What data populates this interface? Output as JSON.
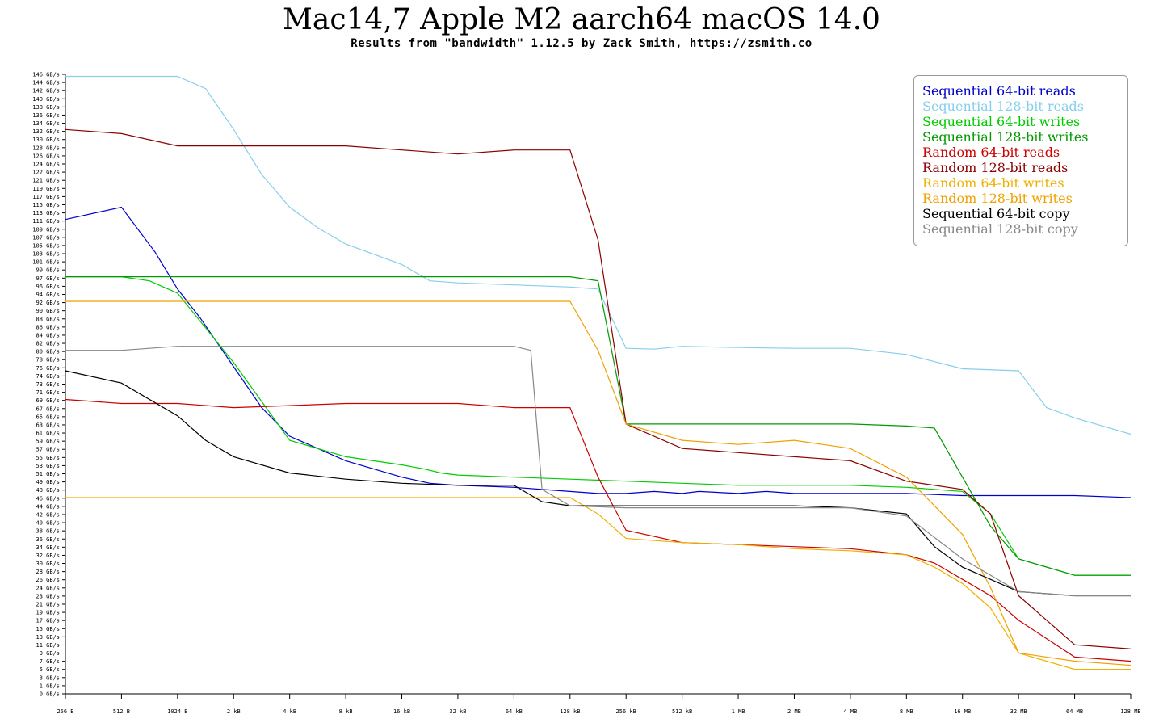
{
  "title": "Mac14,7 Apple M2 aarch64 macOS 14.0",
  "subtitle": "Results from \"bandwidth\" 1.12.5 by Zack Smith, https://zsmith.co",
  "chart_data": {
    "type": "line",
    "x_scale": "log2",
    "x_tick_labels": [
      "256 B",
      "512 B",
      "1024 B",
      "2 kB",
      "4 kB",
      "8 kB",
      "16 kB",
      "32 kB",
      "64 kB",
      "128 kB",
      "256 kB",
      "512 kB",
      "1 MB",
      "2 MB",
      "4 MB",
      "8 MB",
      "16 MB",
      "32 MB",
      "64 MB",
      "128 MB"
    ],
    "x_range_bytes": [
      256,
      134217728
    ],
    "y_tick_labels": [
      "0 GB/s",
      "1 GB/s",
      "3 GB/s",
      "5 GB/s",
      "7 GB/s",
      "9 GB/s",
      "11 GB/s",
      "13 GB/s",
      "15 GB/s",
      "17 GB/s",
      "19 GB/s",
      "21 GB/s",
      "23 GB/s",
      "24 GB/s",
      "26 GB/s",
      "28 GB/s",
      "30 GB/s",
      "32 GB/s",
      "34 GB/s",
      "36 GB/s",
      "38 GB/s",
      "40 GB/s",
      "42 GB/s",
      "44 GB/s",
      "46 GB/s",
      "48 GB/s",
      "49 GB/s",
      "51 GB/s",
      "53 GB/s",
      "55 GB/s",
      "57 GB/s",
      "59 GB/s",
      "61 GB/s",
      "63 GB/s",
      "65 GB/s",
      "67 GB/s",
      "69 GB/s",
      "71 GB/s",
      "73 GB/s",
      "74 GB/s",
      "76 GB/s",
      "78 GB/s",
      "80 GB/s",
      "82 GB/s",
      "84 GB/s",
      "86 GB/s",
      "88 GB/s",
      "90 GB/s",
      "92 GB/s",
      "94 GB/s",
      "96 GB/s",
      "97 GB/s",
      "99 GB/s",
      "101 GB/s",
      "103 GB/s",
      "105 GB/s",
      "107 GB/s",
      "109 GB/s",
      "111 GB/s",
      "113 GB/s",
      "115 GB/s",
      "117 GB/s",
      "119 GB/s",
      "121 GB/s",
      "122 GB/s",
      "124 GB/s",
      "126 GB/s",
      "128 GB/s",
      "130 GB/s",
      "132 GB/s",
      "134 GB/s",
      "136 GB/s",
      "138 GB/s",
      "140 GB/s",
      "142 GB/s",
      "144 GB/s",
      "146 GB/s"
    ],
    "ylim": [
      0,
      151.5
    ],
    "ylabel_unit": "GB/s",
    "grid": false,
    "legend_position": "top-right",
    "series": [
      {
        "name": "Sequential 64-bit reads",
        "color": "#0000cc",
        "points": [
          [
            0,
            116
          ],
          [
            1,
            119
          ],
          [
            1.6,
            108
          ],
          [
            2,
            99
          ],
          [
            2.4,
            92
          ],
          [
            3,
            80
          ],
          [
            3.5,
            70
          ],
          [
            4,
            63
          ],
          [
            5,
            57
          ],
          [
            6,
            53
          ],
          [
            6.5,
            51.5
          ],
          [
            7,
            51
          ],
          [
            8,
            50.5
          ],
          [
            8.5,
            50
          ],
          [
            9,
            49.5
          ],
          [
            9.5,
            49
          ],
          [
            10,
            49
          ],
          [
            10.5,
            49.5
          ],
          [
            11,
            49
          ],
          [
            11.3,
            49.5
          ],
          [
            12,
            49
          ],
          [
            12.5,
            49.5
          ],
          [
            13,
            49
          ],
          [
            14,
            49
          ],
          [
            15,
            49
          ],
          [
            16,
            48.5
          ],
          [
            17,
            48.5
          ],
          [
            18,
            48.5
          ],
          [
            19,
            48
          ]
        ]
      },
      {
        "name": "Sequential 128-bit reads",
        "color": "#87ceeb",
        "points": [
          [
            0,
            151
          ],
          [
            1,
            151
          ],
          [
            2,
            151
          ],
          [
            2.5,
            148
          ],
          [
            3,
            138
          ],
          [
            3.5,
            127
          ],
          [
            4,
            119
          ],
          [
            4.5,
            114
          ],
          [
            5,
            110
          ],
          [
            6,
            105
          ],
          [
            6.5,
            101
          ],
          [
            7,
            100.5
          ],
          [
            8,
            100
          ],
          [
            9,
            99.5
          ],
          [
            9.5,
            99
          ],
          [
            10,
            84.5
          ],
          [
            10.5,
            84.3
          ],
          [
            11,
            85
          ],
          [
            12,
            84.7
          ],
          [
            13,
            84.5
          ],
          [
            14,
            84.5
          ],
          [
            15,
            83
          ],
          [
            16,
            79.5
          ],
          [
            17,
            79
          ],
          [
            17.5,
            70
          ],
          [
            18,
            67.5
          ],
          [
            19,
            63.5
          ]
        ]
      },
      {
        "name": "Sequential 64-bit writes",
        "color": "#00cc00",
        "points": [
          [
            0,
            102
          ],
          [
            1,
            102
          ],
          [
            1.5,
            101
          ],
          [
            2,
            98
          ],
          [
            3,
            81
          ],
          [
            4,
            62
          ],
          [
            5,
            58
          ],
          [
            6,
            56
          ],
          [
            6.4,
            55
          ],
          [
            6.7,
            54
          ],
          [
            7,
            53.5
          ],
          [
            8,
            53
          ],
          [
            9,
            52.5
          ],
          [
            10,
            52
          ],
          [
            11,
            51.5
          ],
          [
            12,
            51
          ],
          [
            13,
            51
          ],
          [
            14,
            51
          ],
          [
            15,
            50.5
          ],
          [
            16,
            49.5
          ],
          [
            16.5,
            44
          ],
          [
            17,
            33
          ],
          [
            18,
            29
          ],
          [
            19,
            29
          ]
        ]
      },
      {
        "name": "Sequential 128-bit writes",
        "color": "#009900",
        "points": [
          [
            0,
            102
          ],
          [
            1,
            102
          ],
          [
            2,
            102
          ],
          [
            3,
            102
          ],
          [
            5,
            102
          ],
          [
            7,
            102
          ],
          [
            8,
            102
          ],
          [
            9,
            102
          ],
          [
            9.5,
            101
          ],
          [
            10,
            66
          ],
          [
            11,
            66
          ],
          [
            12,
            66
          ],
          [
            13,
            66
          ],
          [
            14,
            66
          ],
          [
            15,
            65.5
          ],
          [
            15.5,
            65
          ],
          [
            16,
            53
          ],
          [
            16.5,
            41
          ],
          [
            17,
            33
          ],
          [
            18,
            29
          ],
          [
            19,
            29
          ]
        ]
      },
      {
        "name": "Random 64-bit reads",
        "color": "#cc0000",
        "points": [
          [
            0,
            72
          ],
          [
            1,
            71
          ],
          [
            2,
            71
          ],
          [
            3,
            70
          ],
          [
            4,
            70.5
          ],
          [
            5,
            71
          ],
          [
            6,
            71
          ],
          [
            7,
            71
          ],
          [
            8,
            70
          ],
          [
            9,
            70
          ],
          [
            9.5,
            53
          ],
          [
            10,
            40
          ],
          [
            11,
            37
          ],
          [
            12,
            36.5
          ],
          [
            13,
            36
          ],
          [
            14,
            35.5
          ],
          [
            15,
            34
          ],
          [
            15.5,
            32
          ],
          [
            16,
            28
          ],
          [
            16.5,
            24
          ],
          [
            17,
            18
          ],
          [
            18,
            9
          ],
          [
            19,
            8
          ]
        ]
      },
      {
        "name": "Random 128-bit reads",
        "color": "#8b0000",
        "points": [
          [
            0,
            138
          ],
          [
            1,
            137
          ],
          [
            2,
            134
          ],
          [
            3,
            134
          ],
          [
            4,
            134
          ],
          [
            5,
            134
          ],
          [
            6,
            133
          ],
          [
            7,
            132
          ],
          [
            8,
            133
          ],
          [
            9,
            133
          ],
          [
            9.5,
            111
          ],
          [
            10,
            66
          ],
          [
            11,
            60
          ],
          [
            12,
            59
          ],
          [
            13,
            58
          ],
          [
            14,
            57
          ],
          [
            15,
            52
          ],
          [
            16,
            50
          ],
          [
            16.5,
            44
          ],
          [
            17,
            24
          ],
          [
            18,
            12
          ],
          [
            19,
            11
          ]
        ]
      },
      {
        "name": "Random 64-bit writes",
        "color": "#f0b000",
        "points": [
          [
            0,
            48
          ],
          [
            1,
            48
          ],
          [
            2,
            48
          ],
          [
            3,
            48
          ],
          [
            4,
            48
          ],
          [
            5,
            48
          ],
          [
            6,
            48
          ],
          [
            7,
            48
          ],
          [
            8,
            48
          ],
          [
            9,
            48
          ],
          [
            9.5,
            44
          ],
          [
            10,
            38
          ],
          [
            11,
            37
          ],
          [
            12,
            36.5
          ],
          [
            13,
            35.5
          ],
          [
            14,
            35
          ],
          [
            15,
            34
          ],
          [
            15.5,
            31
          ],
          [
            16,
            27
          ],
          [
            16.5,
            21
          ],
          [
            17,
            10
          ],
          [
            18,
            6
          ],
          [
            19,
            6
          ]
        ]
      },
      {
        "name": "Random 128-bit writes",
        "color": "#f0a000",
        "points": [
          [
            0,
            96
          ],
          [
            1,
            96
          ],
          [
            2,
            96
          ],
          [
            3,
            96
          ],
          [
            4,
            96
          ],
          [
            5,
            96
          ],
          [
            6,
            96
          ],
          [
            7,
            96
          ],
          [
            8,
            96
          ],
          [
            9,
            96
          ],
          [
            9.5,
            84
          ],
          [
            10,
            66
          ],
          [
            11,
            62
          ],
          [
            12,
            61
          ],
          [
            13,
            62
          ],
          [
            14,
            60
          ],
          [
            15,
            53
          ],
          [
            15.5,
            46
          ],
          [
            16,
            39
          ],
          [
            16.5,
            26
          ],
          [
            17,
            10
          ],
          [
            18,
            8
          ],
          [
            19,
            7
          ]
        ]
      },
      {
        "name": "Sequential 64-bit copy",
        "color": "#000000",
        "points": [
          [
            0,
            79
          ],
          [
            1,
            76
          ],
          [
            2,
            68
          ],
          [
            2.5,
            62
          ],
          [
            3,
            58
          ],
          [
            4,
            54
          ],
          [
            5,
            52.5
          ],
          [
            6,
            51.5
          ],
          [
            7,
            51
          ],
          [
            8,
            51
          ],
          [
            8.5,
            47
          ],
          [
            9,
            46
          ],
          [
            10,
            46
          ],
          [
            11,
            46
          ],
          [
            12,
            46
          ],
          [
            13,
            46
          ],
          [
            14,
            45.5
          ],
          [
            15,
            44
          ],
          [
            15.5,
            36
          ],
          [
            16,
            31
          ],
          [
            17,
            25
          ],
          [
            18,
            24
          ],
          [
            19,
            24
          ]
        ]
      },
      {
        "name": "Sequential 128-bit copy",
        "color": "#888888",
        "points": [
          [
            0,
            84
          ],
          [
            1,
            84
          ],
          [
            2,
            85
          ],
          [
            3,
            85
          ],
          [
            4,
            85
          ],
          [
            5,
            85
          ],
          [
            6,
            85
          ],
          [
            7,
            85
          ],
          [
            8,
            85
          ],
          [
            8.3,
            84
          ],
          [
            8.5,
            50
          ],
          [
            9,
            46
          ],
          [
            10,
            45.5
          ],
          [
            11,
            45.5
          ],
          [
            12,
            45.5
          ],
          [
            13,
            45.5
          ],
          [
            14,
            45.5
          ],
          [
            15,
            43.5
          ],
          [
            16,
            33
          ],
          [
            17,
            25
          ],
          [
            18,
            24
          ],
          [
            19,
            24
          ]
        ]
      }
    ]
  },
  "legend": {
    "items": [
      {
        "label": "Sequential 64-bit reads",
        "color": "#0000cc"
      },
      {
        "label": "Sequential 128-bit reads",
        "color": "#87ceeb"
      },
      {
        "label": "Sequential 64-bit writes",
        "color": "#00cc00"
      },
      {
        "label": "Sequential 128-bit writes",
        "color": "#009900"
      },
      {
        "label": "Random 64-bit reads",
        "color": "#cc0000"
      },
      {
        "label": "Random 128-bit reads",
        "color": "#8b0000"
      },
      {
        "label": "Random 64-bit writes",
        "color": "#f0b000"
      },
      {
        "label": "Random 128-bit writes",
        "color": "#f0a000"
      },
      {
        "label": "Sequential 64-bit copy",
        "color": "#000000"
      },
      {
        "label": "Sequential 128-bit copy",
        "color": "#888888"
      }
    ]
  }
}
